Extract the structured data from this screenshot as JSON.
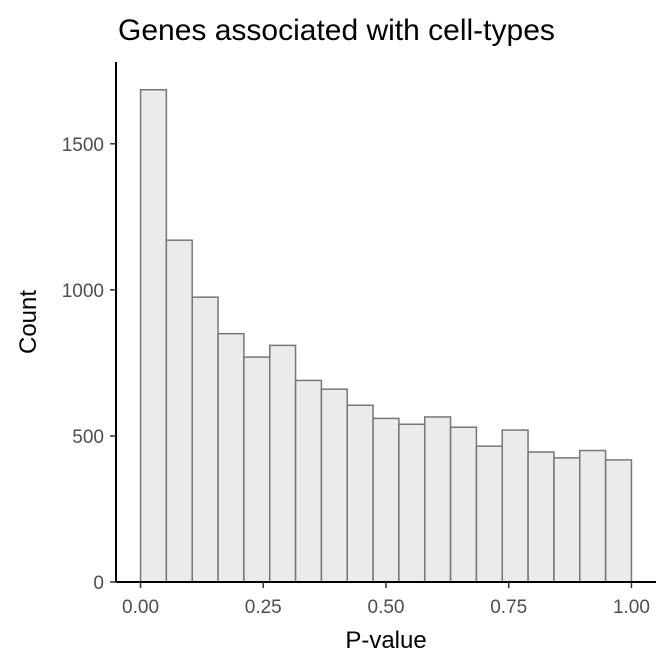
{
  "chart_data": {
    "type": "bar",
    "title": "Genes associated with cell-types",
    "xlabel": "P-value",
    "ylabel": "Count",
    "xlim": [
      -0.05,
      1.05
    ],
    "ylim": [
      0,
      1780
    ],
    "x_ticks": [
      {
        "value": 0.0,
        "label": "0.00"
      },
      {
        "value": 0.25,
        "label": "0.25"
      },
      {
        "value": 0.5,
        "label": "0.50"
      },
      {
        "value": 0.75,
        "label": "0.75"
      },
      {
        "value": 1.0,
        "label": "1.00"
      }
    ],
    "y_ticks": [
      {
        "value": 0,
        "label": "0"
      },
      {
        "value": 500,
        "label": "500"
      },
      {
        "value": 1000,
        "label": "1000"
      },
      {
        "value": 1500,
        "label": "1500"
      }
    ],
    "bin_width": 0.0526,
    "bin_starts": [
      0.0,
      0.0526,
      0.1053,
      0.1579,
      0.2105,
      0.2632,
      0.3158,
      0.3684,
      0.4211,
      0.4737,
      0.5263,
      0.5789,
      0.6316,
      0.6842,
      0.7368,
      0.7895,
      0.8421,
      0.8947,
      0.9474
    ],
    "values": [
      1685,
      1170,
      975,
      850,
      770,
      810,
      690,
      660,
      605,
      560,
      540,
      565,
      530,
      465,
      520,
      445,
      425,
      450,
      418
    ],
    "grid": false,
    "colors": {
      "fill": "#ebebeb",
      "outline": "#777777"
    }
  }
}
